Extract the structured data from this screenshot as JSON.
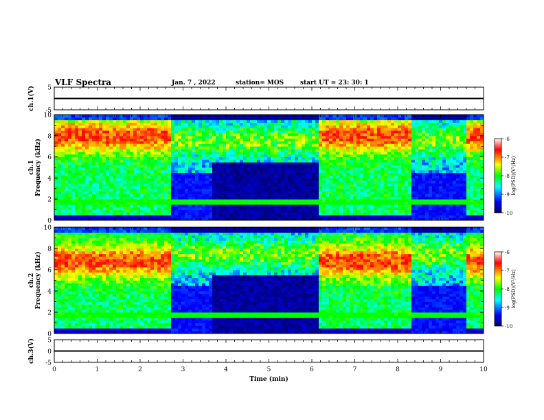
{
  "header": {
    "title": "VLF Spectra",
    "date": "Jan. 7 , 2022",
    "station": "station= MOS",
    "start": "start UT = 23: 30: 1"
  },
  "chart_data": [
    {
      "type": "line",
      "panel": "ch1-waveform",
      "ylabel": "ch.1(V)",
      "ylim": [
        -5,
        5
      ],
      "yticks": [
        "5",
        "-5"
      ],
      "xlim": [
        0,
        10
      ],
      "series": [
        {
          "x": [
            0,
            10
          ],
          "values": [
            0,
            0
          ]
        }
      ]
    },
    {
      "type": "heatmap",
      "panel": "ch1-spectrogram",
      "ylabel": "ch.1\nFrequency (kHz)",
      "ylim": [
        0,
        10
      ],
      "yticks": [
        "0",
        "2",
        "4",
        "6",
        "8",
        "10"
      ],
      "xlim": [
        0,
        10
      ],
      "colorbar": {
        "label": "log(PSD)(V²/Hz)",
        "range": [
          -10,
          -6
        ],
        "ticks": [
          "-6",
          "-7",
          "-8",
          "-9",
          "-10"
        ]
      },
      "quiet_intervals_min": [
        [
          2.7,
          3.7
        ],
        [
          3.7,
          6.2
        ],
        [
          8.3,
          9.6
        ]
      ]
    },
    {
      "type": "heatmap",
      "panel": "ch2-spectrogram",
      "ylabel": "ch.2\nFrequency (kHz)",
      "ylim": [
        0,
        10
      ],
      "yticks": [
        "0",
        "2",
        "4",
        "6",
        "8",
        "10"
      ],
      "xlim": [
        0,
        10
      ],
      "colorbar": {
        "label": "log(PSD)(V²/Hz)",
        "range": [
          -10,
          -6
        ],
        "ticks": [
          "-6",
          "-7",
          "-8",
          "-9",
          "-10"
        ]
      },
      "quiet_intervals_min": [
        [
          2.7,
          3.7
        ],
        [
          3.7,
          6.2
        ],
        [
          8.3,
          9.6
        ]
      ]
    },
    {
      "type": "line",
      "panel": "ch3-waveform",
      "ylabel": "ch.3(V)",
      "ylim": [
        -5,
        5
      ],
      "yticks": [
        "5",
        "0",
        "-5"
      ],
      "xlim": [
        0,
        10
      ],
      "xlabel": "Time (min)",
      "xticks": [
        "0",
        "1",
        "2",
        "3",
        "4",
        "5",
        "6",
        "7",
        "8",
        "9",
        "10"
      ],
      "series": [
        {
          "x": [
            0,
            10
          ],
          "values": [
            0,
            0
          ]
        }
      ]
    }
  ],
  "colors": {
    "background": "#ffffff",
    "axes": "#000000",
    "colormap": [
      "#000050",
      "#0000ff",
      "#00ffff",
      "#00ff00",
      "#ffff00",
      "#ff0000",
      "#ffffff"
    ]
  }
}
